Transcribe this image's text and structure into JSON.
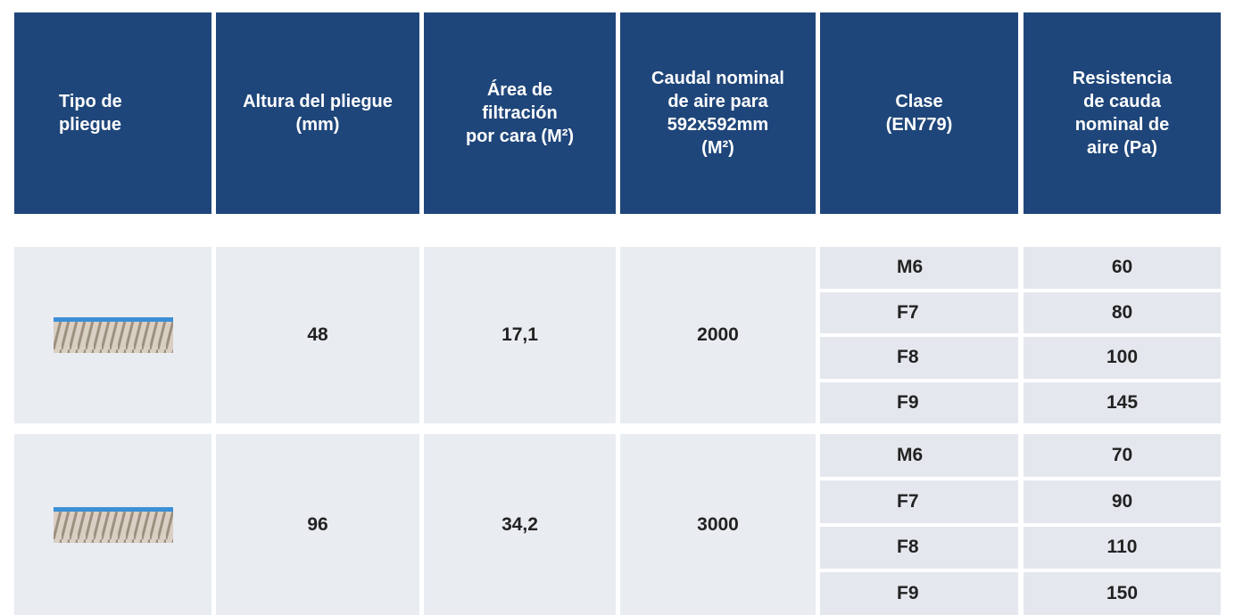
{
  "header": [
    [
      "Tipo de",
      "pliegue"
    ],
    [
      "Altura del pliegue",
      "(mm)"
    ],
    [
      "Área de",
      "filtración",
      "por cara (M²)"
    ],
    [
      "Caudal nominal",
      "de aire para",
      "592x592mm",
      "(M²)"
    ],
    [
      "Clase",
      "(EN779)"
    ],
    [
      "Resistencia",
      "de cauda",
      "nominal de",
      "aire (Pa)"
    ]
  ],
  "rows": [
    {
      "altura": "48",
      "area": "17,1",
      "caudal": "2000",
      "classes": [
        {
          "clase": "M6",
          "resistencia": "60"
        },
        {
          "clase": "F7",
          "resistencia": "80"
        },
        {
          "clase": "F8",
          "resistencia": "100"
        },
        {
          "clase": "F9",
          "resistencia": "145"
        }
      ]
    },
    {
      "altura": "96",
      "area": "34,2",
      "caudal": "3000",
      "classes": [
        {
          "clase": "M6",
          "resistencia": "70"
        },
        {
          "clase": "F7",
          "resistencia": "90"
        },
        {
          "clase": "F8",
          "resistencia": "110"
        },
        {
          "clase": "F9",
          "resistencia": "150"
        }
      ]
    }
  ]
}
